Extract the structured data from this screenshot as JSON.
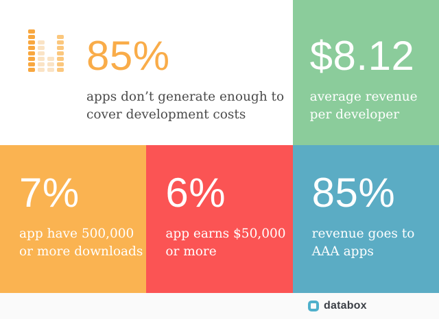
{
  "colors": {
    "tile_orange": "#FAB351",
    "tile_red": "#FB5454",
    "tile_teal": "#5BACC4",
    "tile_green": "#8BCC9B",
    "stat_orange": "#F9AC49",
    "dark_text": "#4A4A4A",
    "white_text": "#FFFFFF",
    "footer_bg": "#FAFAFA",
    "logo_teal": "#4FB0CB",
    "logo_text": "#3B3F46",
    "icon_bar_dark": "#F8A73F",
    "icon_bar_pale": "#FAE3C5",
    "icon_bar_mid": "#FBC77D"
  },
  "tiles": {
    "white": {
      "stat": "85%",
      "desc_line1": "apps don’t generate enough to",
      "desc_line2": "cover development costs"
    },
    "green": {
      "stat": "$8.12",
      "desc_line1": "average revenue",
      "desc_line2": "per developer"
    },
    "orange": {
      "stat": "7%",
      "desc_line1": "app have 500,000",
      "desc_line2": "or more downloads"
    },
    "red": {
      "stat": "6%",
      "desc_line1": "app earns $50,000",
      "desc_line2": "or more"
    },
    "teal": {
      "stat": "85%",
      "desc_line1": "revenue goes to",
      "desc_line2": "AAA apps"
    }
  },
  "icon": {
    "name": "equalizer-bars-icon",
    "rows": 8,
    "columns": [
      {
        "blocks": 8,
        "shade": "dark"
      },
      {
        "blocks": 6,
        "shade": "pale"
      },
      {
        "blocks": 3,
        "shade": "pale"
      },
      {
        "blocks": 7,
        "shade": "mid"
      }
    ]
  },
  "footer": {
    "brand": "databox"
  },
  "chart_data": {
    "type": "table",
    "title": "App economy statistics infographic",
    "items": [
      {
        "value": "85%",
        "label": "apps don’t generate enough to cover development costs"
      },
      {
        "value": "$8.12",
        "label": "average revenue per developer"
      },
      {
        "value": "7%",
        "label": "app have 500,000 or more downloads"
      },
      {
        "value": "6%",
        "label": "app earns $50,000 or more"
      },
      {
        "value": "85%",
        "label": "revenue goes to AAA apps"
      }
    ],
    "legend_position": "none",
    "grid": false
  }
}
